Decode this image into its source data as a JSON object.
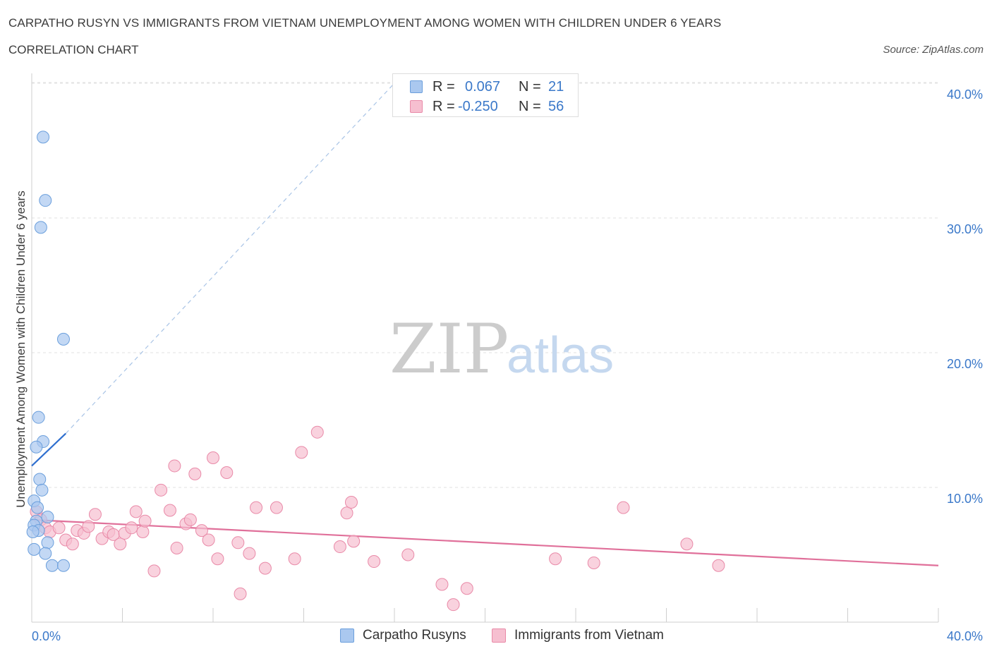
{
  "header": {
    "title": "CARPATHO RUSYN VS IMMIGRANTS FROM VIETNAM UNEMPLOYMENT AMONG WOMEN WITH CHILDREN UNDER 6 YEARS",
    "subtitle": "CORRELATION CHART",
    "source": "Source: ZipAtlas.com"
  },
  "watermark": {
    "zip": "ZIP",
    "atlas": "atlas"
  },
  "legend_top": {
    "rows": [
      {
        "r_label": "R =",
        "r_value": "0.067",
        "n_label": "N =",
        "n_value": "21"
      },
      {
        "r_label": "R =",
        "r_value": "-0.250",
        "n_label": "N =",
        "n_value": "56"
      }
    ]
  },
  "legend_bottom": {
    "series_a": "Carpatho Rusyns",
    "series_b": "Immigrants from Vietnam"
  },
  "colors": {
    "blue_fill": "#aac8ef",
    "blue_stroke": "#6b9fdc",
    "blue_line": "#2f6fcf",
    "pink_fill": "#f6bfd0",
    "pink_stroke": "#e98aa8",
    "pink_line": "#e0709a",
    "tick_label": "#3a78c9",
    "grid": "#e1e1e1"
  },
  "chart_data": {
    "type": "scatter",
    "title": "CARPATHO RUSYN VS IMMIGRANTS FROM VIETNAM UNEMPLOYMENT AMONG WOMEN WITH CHILDREN UNDER 6 YEARS",
    "xlabel": "",
    "ylabel": "Unemployment Among Women with Children Under 6 years",
    "xlim": [
      0,
      40
    ],
    "ylim": [
      0,
      40
    ],
    "x_tick_labels": [
      "0.0%",
      "40.0%"
    ],
    "y_ticks": [
      10,
      20,
      30,
      40
    ],
    "y_tick_labels": [
      "10.0%",
      "20.0%",
      "30.0%",
      "40.0%"
    ],
    "grid": true,
    "legend": "top-center",
    "series": [
      {
        "name": "Carpatho Rusyns",
        "r": 0.067,
        "n": 21,
        "trend": {
          "x": [
            0,
            1.5
          ],
          "y": [
            11.6,
            14.0
          ],
          "dashed_to": [
            16.0,
            40.0
          ]
        },
        "points": [
          {
            "x": 0.5,
            "y": 36.0
          },
          {
            "x": 0.6,
            "y": 31.3
          },
          {
            "x": 0.4,
            "y": 29.3
          },
          {
            "x": 1.4,
            "y": 21.0
          },
          {
            "x": 0.3,
            "y": 15.2
          },
          {
            "x": 0.5,
            "y": 13.4
          },
          {
            "x": 0.2,
            "y": 13.0
          },
          {
            "x": 0.35,
            "y": 10.6
          },
          {
            "x": 0.45,
            "y": 9.8
          },
          {
            "x": 0.1,
            "y": 9.0
          },
          {
            "x": 0.25,
            "y": 8.5
          },
          {
            "x": 0.7,
            "y": 7.8
          },
          {
            "x": 0.2,
            "y": 7.5
          },
          {
            "x": 0.1,
            "y": 7.2
          },
          {
            "x": 0.3,
            "y": 6.8
          },
          {
            "x": 0.05,
            "y": 6.7
          },
          {
            "x": 0.7,
            "y": 5.9
          },
          {
            "x": 0.1,
            "y": 5.4
          },
          {
            "x": 0.6,
            "y": 5.1
          },
          {
            "x": 0.9,
            "y": 4.2
          },
          {
            "x": 1.4,
            "y": 4.2
          }
        ]
      },
      {
        "name": "Immigrants from Vietnam",
        "r": -0.25,
        "n": 56,
        "trend": {
          "x": [
            0,
            40
          ],
          "y": [
            7.6,
            4.2
          ]
        },
        "points": [
          {
            "x": 0.2,
            "y": 8.2
          },
          {
            "x": 0.4,
            "y": 7.6
          },
          {
            "x": 0.6,
            "y": 7.0
          },
          {
            "x": 0.8,
            "y": 6.7
          },
          {
            "x": 1.2,
            "y": 7.0
          },
          {
            "x": 1.5,
            "y": 6.1
          },
          {
            "x": 1.8,
            "y": 5.8
          },
          {
            "x": 2.0,
            "y": 6.8
          },
          {
            "x": 2.3,
            "y": 6.6
          },
          {
            "x": 2.5,
            "y": 7.1
          },
          {
            "x": 2.8,
            "y": 8.0
          },
          {
            "x": 3.1,
            "y": 6.2
          },
          {
            "x": 3.4,
            "y": 6.7
          },
          {
            "x": 3.6,
            "y": 6.5
          },
          {
            "x": 3.9,
            "y": 5.8
          },
          {
            "x": 4.1,
            "y": 6.6
          },
          {
            "x": 4.4,
            "y": 7.0
          },
          {
            "x": 4.6,
            "y": 8.2
          },
          {
            "x": 4.9,
            "y": 6.7
          },
          {
            "x": 5.0,
            "y": 7.5
          },
          {
            "x": 5.4,
            "y": 3.8
          },
          {
            "x": 5.7,
            "y": 9.8
          },
          {
            "x": 6.1,
            "y": 8.3
          },
          {
            "x": 6.3,
            "y": 11.6
          },
          {
            "x": 6.4,
            "y": 5.5
          },
          {
            "x": 6.8,
            "y": 7.3
          },
          {
            "x": 7.0,
            "y": 7.6
          },
          {
            "x": 7.2,
            "y": 11.0
          },
          {
            "x": 7.5,
            "y": 6.8
          },
          {
            "x": 7.8,
            "y": 6.1
          },
          {
            "x": 8.0,
            "y": 12.2
          },
          {
            "x": 8.2,
            "y": 4.7
          },
          {
            "x": 8.6,
            "y": 11.1
          },
          {
            "x": 9.1,
            "y": 5.9
          },
          {
            "x": 9.2,
            "y": 2.1
          },
          {
            "x": 9.6,
            "y": 5.1
          },
          {
            "x": 9.9,
            "y": 8.5
          },
          {
            "x": 10.3,
            "y": 4.0
          },
          {
            "x": 10.8,
            "y": 8.5
          },
          {
            "x": 11.6,
            "y": 4.7
          },
          {
            "x": 11.9,
            "y": 12.6
          },
          {
            "x": 12.6,
            "y": 14.1
          },
          {
            "x": 13.6,
            "y": 5.6
          },
          {
            "x": 13.9,
            "y": 8.1
          },
          {
            "x": 14.2,
            "y": 6.0
          },
          {
            "x": 14.1,
            "y": 8.9
          },
          {
            "x": 15.1,
            "y": 4.5
          },
          {
            "x": 16.6,
            "y": 5.0
          },
          {
            "x": 18.1,
            "y": 2.8
          },
          {
            "x": 18.6,
            "y": 1.3
          },
          {
            "x": 19.2,
            "y": 2.5
          },
          {
            "x": 23.1,
            "y": 4.7
          },
          {
            "x": 24.8,
            "y": 4.4
          },
          {
            "x": 26.1,
            "y": 8.5
          },
          {
            "x": 28.9,
            "y": 5.8
          },
          {
            "x": 30.3,
            "y": 4.2
          }
        ]
      }
    ]
  }
}
